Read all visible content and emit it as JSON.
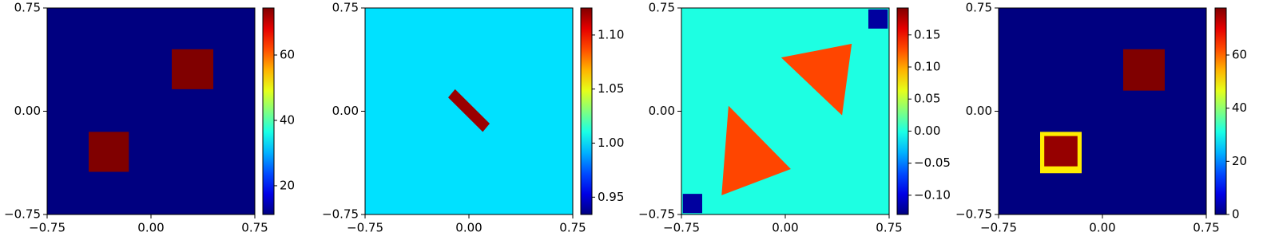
{
  "chart_data": [
    {
      "type": "heatmap",
      "colormap": "jet",
      "xlim": [
        -0.75,
        0.75
      ],
      "ylim": [
        -0.75,
        0.75
      ],
      "xticks": [
        {
          "value": -0.75,
          "label": "−0.75"
        },
        {
          "value": 0,
          "label": "0.00"
        },
        {
          "value": 0.75,
          "label": "0.75"
        }
      ],
      "yticks": [
        {
          "value": -0.75,
          "label": "−0.75"
        },
        {
          "value": 0,
          "label": "0.00"
        },
        {
          "value": 0.75,
          "label": "0.75"
        }
      ],
      "clim": [
        11.2,
        74.4
      ],
      "cticks": [
        20,
        40,
        60
      ],
      "background": 11.2,
      "regions": [
        {
          "x": [
            0.15,
            0.45,
            0.45,
            0.15
          ],
          "y": [
            0.45,
            0.45,
            0.16,
            0.16
          ],
          "value": 74.4
        },
        {
          "x": [
            -0.45,
            -0.16,
            -0.16,
            -0.45
          ],
          "y": [
            -0.15,
            -0.15,
            -0.44,
            -0.44
          ],
          "value": 74.4
        }
      ]
    },
    {
      "type": "heatmap",
      "colormap": "jet",
      "xlim": [
        -0.75,
        0.75
      ],
      "ylim": [
        -0.75,
        0.75
      ],
      "xticks": [
        {
          "value": -0.75,
          "label": "−0.75"
        },
        {
          "value": 0,
          "label": "0.00"
        },
        {
          "value": 0.75,
          "label": "0.75"
        }
      ],
      "yticks": [
        {
          "value": -0.75,
          "label": "−0.75"
        },
        {
          "value": 0,
          "label": "0.00"
        },
        {
          "value": 0.75,
          "label": "0.75"
        }
      ],
      "clim": [
        0.934,
        1.125
      ],
      "cticks": [
        0.95,
        {
          "value": 1,
          "label": "1.00"
        },
        1.05,
        {
          "value": 1.1,
          "label": "1.10"
        }
      ],
      "background": 1.0,
      "regions": [
        {
          "x": [
            -0.15,
            -0.1,
            0.15,
            0.1
          ],
          "y": [
            0.1,
            0.16,
            -0.09,
            -0.15
          ],
          "value": 1.12
        }
      ]
    },
    {
      "type": "heatmap",
      "colormap": "jet",
      "xlim": [
        -0.75,
        0.75
      ],
      "ylim": [
        -0.75,
        0.75
      ],
      "xticks": [
        {
          "value": -0.75,
          "label": "−0.75"
        },
        {
          "value": 0,
          "label": "0.00"
        },
        {
          "value": 0.75,
          "label": "0.75"
        }
      ],
      "yticks": [
        {
          "value": -0.75,
          "label": "−0.75"
        },
        {
          "value": 0,
          "label": "0.00"
        },
        {
          "value": 0.75,
          "label": "0.75"
        }
      ],
      "clim": [
        -0.13,
        0.192
      ],
      "cticks": [
        {
          "value": -0.1,
          "label": "−0.10"
        },
        {
          "value": -0.05,
          "label": "−0.05"
        },
        {
          "value": 0,
          "label": "0.00"
        },
        0.05,
        {
          "value": 0.1,
          "label": "0.10"
        },
        0.15
      ],
      "background": 0.0,
      "regions": [
        {
          "x": [
            -0.03,
            0.48,
            0.41
          ],
          "y": [
            0.39,
            0.49,
            -0.03
          ],
          "value": 0.13
        },
        {
          "x": [
            -0.46,
            -0.41,
            0.04
          ],
          "y": [
            -0.61,
            0.04,
            -0.42
          ],
          "value": 0.13
        },
        {
          "x": [
            0.6,
            0.74,
            0.74,
            0.6
          ],
          "y": [
            0.74,
            0.74,
            0.6,
            0.6
          ],
          "value": -0.12
        },
        {
          "x": [
            -0.74,
            -0.6,
            -0.6,
            -0.74
          ],
          "y": [
            -0.6,
            -0.6,
            -0.74,
            -0.74
          ],
          "value": -0.12
        }
      ]
    },
    {
      "type": "heatmap",
      "colormap": "jet",
      "xlim": [
        -0.75,
        0.75
      ],
      "ylim": [
        -0.75,
        0.75
      ],
      "xticks": [
        {
          "value": -0.75,
          "label": "−0.75"
        },
        {
          "value": 0,
          "label": "0.00"
        },
        {
          "value": 0.75,
          "label": "0.75"
        }
      ],
      "yticks": [
        {
          "value": -0.75,
          "label": "−0.75"
        },
        {
          "value": 0,
          "label": "0.00"
        },
        {
          "value": 0.75,
          "label": "0.75"
        }
      ],
      "clim": [
        0,
        77.7
      ],
      "cticks": [
        0,
        20,
        40,
        60
      ],
      "background": 0,
      "regions": [
        {
          "x": [
            0.15,
            0.45,
            0.45,
            0.15
          ],
          "y": [
            0.45,
            0.45,
            0.15,
            0.15
          ],
          "value": 77.7
        },
        {
          "x": [
            -0.45,
            -0.15,
            -0.15,
            -0.45
          ],
          "y": [
            -0.15,
            -0.15,
            -0.45,
            -0.45
          ],
          "value": 50
        },
        {
          "x": [
            -0.42,
            -0.18,
            -0.18,
            -0.42
          ],
          "y": [
            -0.18,
            -0.18,
            -0.4,
            -0.4
          ],
          "value": 76
        }
      ]
    }
  ]
}
